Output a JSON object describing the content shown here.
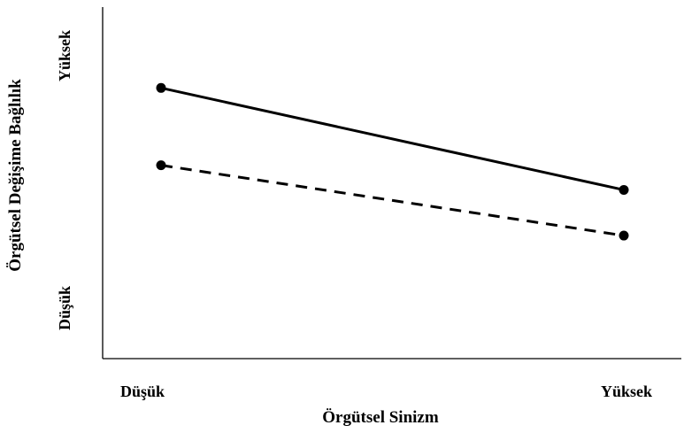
{
  "chart_data": {
    "type": "line",
    "title": "",
    "xlabel": "Örgütsel Sinizm",
    "ylabel": "Örgütsel Değişime Bağlılık",
    "x_tick_labels": [
      "Düşük",
      "Yüksek"
    ],
    "y_tick_labels": [
      "Düşük",
      "Yüksek"
    ],
    "series": [
      {
        "line_style": "solid",
        "values": [
          0.77,
          0.48
        ]
      },
      {
        "line_style": "dashed",
        "values": [
          0.55,
          0.35
        ]
      }
    ],
    "ylim": [
      0,
      1
    ],
    "grid": false,
    "legend": "none",
    "colors": {
      "line": "#000000",
      "axis": "#000000",
      "background": "#ffffff"
    }
  }
}
